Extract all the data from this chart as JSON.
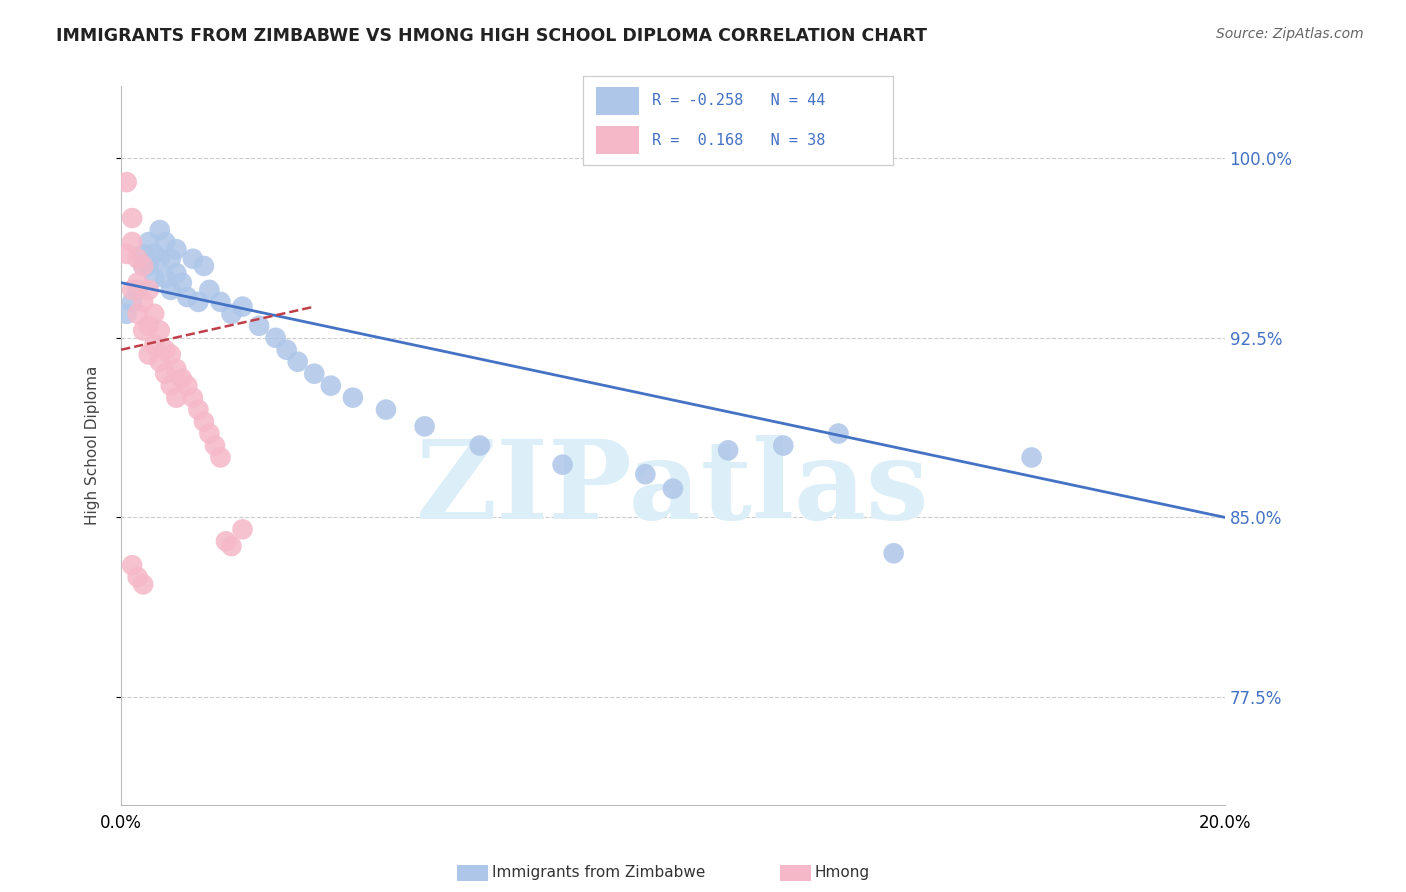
{
  "title": "IMMIGRANTS FROM ZIMBABWE VS HMONG HIGH SCHOOL DIPLOMA CORRELATION CHART",
  "source": "Source: ZipAtlas.com",
  "ylabel": "High School Diploma",
  "legend_label1": "Immigrants from Zimbabwe",
  "legend_label2": "Hmong",
  "R1": -0.258,
  "N1": 44,
  "R2": 0.168,
  "N2": 38,
  "xlim": [
    0.0,
    0.2
  ],
  "ylim": [
    0.73,
    1.03
  ],
  "yticks": [
    0.775,
    0.85,
    0.925,
    1.0
  ],
  "ytick_labels": [
    "77.5%",
    "85.0%",
    "92.5%",
    "100.0%"
  ],
  "xticks": [
    0.0,
    0.025,
    0.05,
    0.075,
    0.1,
    0.125,
    0.15,
    0.175,
    0.2
  ],
  "color_blue": "#aec6e8",
  "color_pink": "#f5b8c8",
  "color_blue_line": "#4472c4",
  "color_pink_line": "#c0404a",
  "watermark": "ZIPatlas",
  "watermark_color": "#dceef8",
  "blue_line_x0": 0.0,
  "blue_line_y0": 0.948,
  "blue_line_x1": 0.2,
  "blue_line_y1": 0.85,
  "pink_line_x0": 0.0,
  "pink_line_y0": 0.92,
  "pink_line_x1": 0.035,
  "pink_line_y1": 0.938,
  "blue_x": [
    0.001,
    0.002,
    0.003,
    0.004,
    0.004,
    0.005,
    0.005,
    0.006,
    0.006,
    0.007,
    0.007,
    0.008,
    0.008,
    0.009,
    0.009,
    0.01,
    0.01,
    0.011,
    0.012,
    0.013,
    0.014,
    0.015,
    0.016,
    0.018,
    0.02,
    0.022,
    0.025,
    0.028,
    0.03,
    0.032,
    0.035,
    0.038,
    0.042,
    0.048,
    0.055,
    0.065,
    0.08,
    0.095,
    0.11,
    0.13,
    0.165,
    0.1,
    0.12,
    0.14
  ],
  "blue_y": [
    0.935,
    0.94,
    0.945,
    0.96,
    0.955,
    0.965,
    0.955,
    0.96,
    0.95,
    0.97,
    0.958,
    0.965,
    0.95,
    0.958,
    0.945,
    0.962,
    0.952,
    0.948,
    0.942,
    0.958,
    0.94,
    0.955,
    0.945,
    0.94,
    0.935,
    0.938,
    0.93,
    0.925,
    0.92,
    0.915,
    0.91,
    0.905,
    0.9,
    0.895,
    0.888,
    0.88,
    0.872,
    0.868,
    0.878,
    0.885,
    0.875,
    0.862,
    0.88,
    0.835
  ],
  "pink_x": [
    0.001,
    0.001,
    0.002,
    0.002,
    0.002,
    0.003,
    0.003,
    0.003,
    0.004,
    0.004,
    0.004,
    0.005,
    0.005,
    0.005,
    0.006,
    0.006,
    0.007,
    0.007,
    0.008,
    0.008,
    0.009,
    0.009,
    0.01,
    0.01,
    0.011,
    0.012,
    0.013,
    0.014,
    0.015,
    0.016,
    0.017,
    0.018,
    0.019,
    0.02,
    0.022,
    0.002,
    0.003,
    0.004
  ],
  "pink_y": [
    0.99,
    0.96,
    0.975,
    0.965,
    0.945,
    0.958,
    0.948,
    0.935,
    0.955,
    0.94,
    0.928,
    0.945,
    0.93,
    0.918,
    0.935,
    0.922,
    0.928,
    0.915,
    0.92,
    0.91,
    0.918,
    0.905,
    0.912,
    0.9,
    0.908,
    0.905,
    0.9,
    0.895,
    0.89,
    0.885,
    0.88,
    0.875,
    0.84,
    0.838,
    0.845,
    0.83,
    0.825,
    0.822
  ]
}
